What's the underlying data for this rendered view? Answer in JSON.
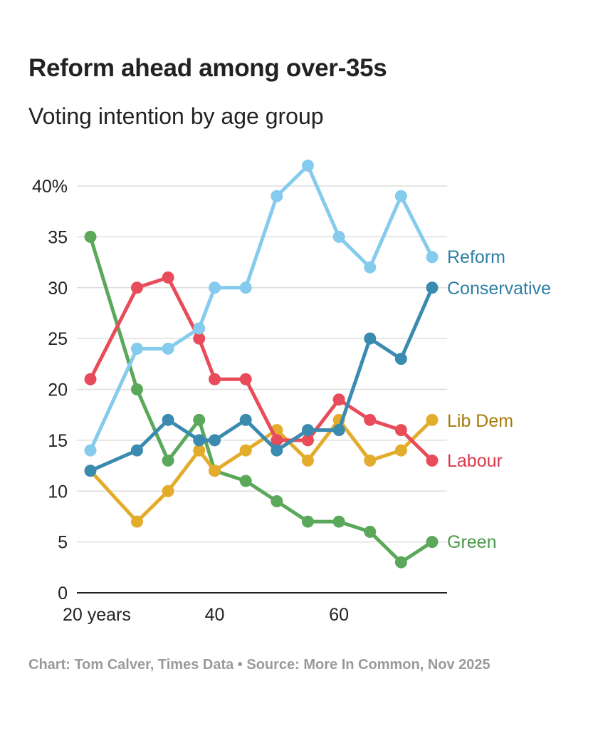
{
  "title": "Reform ahead among over-35s",
  "subtitle": "Voting intention by age group",
  "footer": "Chart: Tom Calver, Times Data • Source: More In Common, Nov 2025",
  "chart_data": {
    "type": "line",
    "title": "Reform ahead among over-35s",
    "subtitle": "Voting intention by age group",
    "x": [
      20,
      27.5,
      32.5,
      37.5,
      40,
      45,
      50,
      55,
      60,
      65,
      70,
      75
    ],
    "xlim": [
      17,
      78
    ],
    "ylim": [
      0,
      43
    ],
    "grid": true,
    "y_ticks": [
      {
        "value": 0,
        "label": "0"
      },
      {
        "value": 5,
        "label": "5"
      },
      {
        "value": 10,
        "label": "10"
      },
      {
        "value": 15,
        "label": "15"
      },
      {
        "value": 20,
        "label": "20"
      },
      {
        "value": 25,
        "label": "25"
      },
      {
        "value": 30,
        "label": "30"
      },
      {
        "value": 35,
        "label": "35"
      },
      {
        "value": 40,
        "label": "40%"
      }
    ],
    "x_ticks": [
      {
        "value": 22,
        "label": "20 years"
      },
      {
        "value": 40,
        "label": "40"
      },
      {
        "value": 60,
        "label": "60"
      }
    ],
    "series": [
      {
        "name": "Green",
        "color": "#5ba85b",
        "values": [
          35,
          20,
          13,
          17,
          12,
          11,
          9,
          7,
          7,
          6,
          3,
          5
        ]
      },
      {
        "name": "Lib Dem",
        "color": "#e3ac2b",
        "values": [
          12,
          7,
          10,
          14,
          12,
          14,
          16,
          13,
          17,
          13,
          14,
          17
        ]
      },
      {
        "name": "Labour",
        "color": "#e84c5a",
        "values": [
          21,
          30,
          31,
          25,
          21,
          21,
          15,
          15,
          19,
          17,
          16,
          13
        ]
      },
      {
        "name": "Conservative",
        "color": "#3b8bb0",
        "values": [
          12,
          14,
          17,
          15,
          15,
          17,
          14,
          16,
          16,
          25,
          23,
          30
        ]
      },
      {
        "name": "Reform",
        "color": "#85cbee",
        "values": [
          14,
          24,
          24,
          26,
          30,
          30,
          39,
          42,
          35,
          32,
          39,
          33
        ]
      }
    ],
    "label_colors": {
      "Reform": "#2c7fa3",
      "Conservative": "#2c7fa3",
      "Lib Dem": "#a57a08",
      "Labour": "#d8394a",
      "Green": "#4a9a4a"
    }
  }
}
